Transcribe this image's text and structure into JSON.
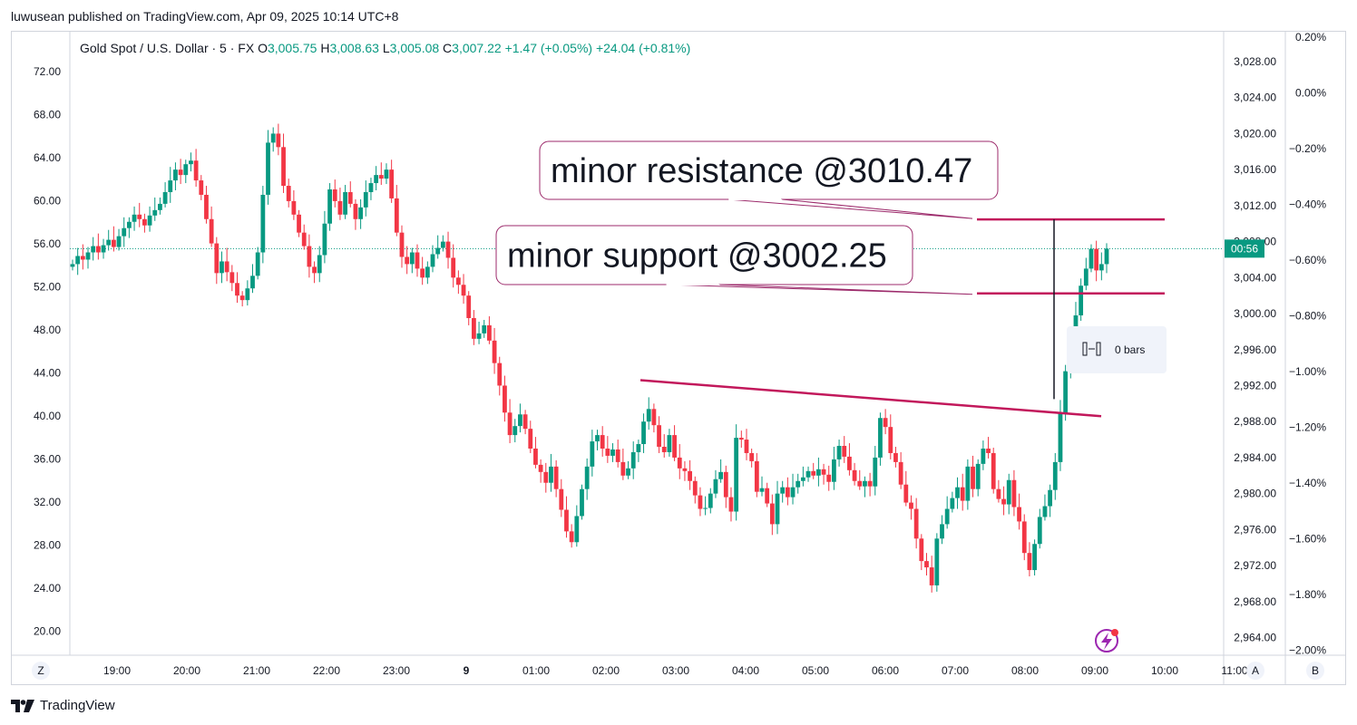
{
  "header": {
    "published": "luwusean published on TradingView.com, Apr 09, 2025 10:14 UTC+8"
  },
  "symbol": {
    "name": "Gold Spot / U.S. Dollar · 5 · FX",
    "o_label": "O",
    "o": "3,005.75",
    "h_label": "H",
    "h": "3,008.63",
    "l_label": "L",
    "l": "3,005.08",
    "c_label": "C",
    "c": "3,007.22",
    "change": "+1.47 (+0.05%)",
    "change2": "+24.04 (+0.81%)"
  },
  "footer": {
    "brand": "TradingView"
  },
  "buttons": {
    "left": "Z",
    "a": "A",
    "b": "B"
  },
  "measure": {
    "label": "0 bars"
  },
  "colors": {
    "up": "#089981",
    "down": "#f23645",
    "line": "#c2185b",
    "annotation_border": "#9c2a6b"
  },
  "chart_data": {
    "type": "candlestick",
    "symbol": "XAUUSD",
    "timeframe": "5",
    "x_ticks": [
      "19:00",
      "20:00",
      "21:00",
      "22:00",
      "23:00",
      "9",
      "01:00",
      "02:00",
      "03:00",
      "04:00",
      "05:00",
      "06:00",
      "07:00",
      "08:00",
      "09:00",
      "10:00",
      "11:00"
    ],
    "left_axis": {
      "ticks": [
        "72.00",
        "68.00",
        "64.00",
        "60.00",
        "56.00",
        "52.00",
        "48.00",
        "44.00",
        "40.00",
        "36.00",
        "32.00",
        "28.00",
        "24.00",
        "20.00"
      ]
    },
    "price_axis": {
      "ticks": [
        "3,028.00",
        "3,024.00",
        "3,020.00",
        "3,016.00",
        "3,012.00",
        "3,008.00",
        "3,004.00",
        "3,000.00",
        "2,996.00",
        "2,992.00",
        "2,988.00",
        "2,984.00",
        "2,980.00",
        "2,976.00",
        "2,972.00",
        "2,968.00",
        "2,964.00"
      ]
    },
    "percent_axis": {
      "ticks": [
        "0.20%",
        "0.00%",
        "−0.20%",
        "−0.40%",
        "−0.60%",
        "−0.80%",
        "−1.00%",
        "−1.20%",
        "−1.40%",
        "−1.60%",
        "−1.80%",
        "−2.00%"
      ]
    },
    "current_label": "00:56",
    "close_series": [
      3005.5,
      3006.4,
      3006.0,
      3006.8,
      3007.5,
      3006.8,
      3007.6,
      3008.2,
      3007.4,
      3008.6,
      3009.5,
      3010.2,
      3011.0,
      3010.5,
      3009.8,
      3010.9,
      3011.5,
      3012.2,
      3013.5,
      3014.8,
      3016.0,
      3015.4,
      3016.6,
      3017.0,
      3014.8,
      3013.2,
      3010.5,
      3007.8,
      3004.5,
      3005.8,
      3004.6,
      3003.4,
      3002.0,
      3001.5,
      3002.8,
      3004.2,
      3006.8,
      3013.2,
      3019.0,
      3020.0,
      3018.5,
      3014.2,
      3012.5,
      3011.0,
      3009.0,
      3007.5,
      3005.2,
      3004.5,
      3006.5,
      3010.0,
      3013.8,
      3012.5,
      3011.0,
      3013.5,
      3012.2,
      3010.5,
      3011.8,
      3013.5,
      3014.5,
      3015.4,
      3015.0,
      3016.0,
      3012.8,
      3009.0,
      3006.3,
      3005.5,
      3006.8,
      3005.0,
      3004.0,
      3005.2,
      3006.6,
      3007.3,
      3008.0,
      3006.2,
      3004.0,
      3003.2,
      3002.0,
      2999.5,
      2997.2,
      2997.8,
      2998.7,
      2997.0,
      2994.5,
      2992.0,
      2989.0,
      2986.5,
      2987.5,
      2988.8,
      2987.2,
      2985.0,
      2983.2,
      2982.4,
      2981.2,
      2983.0,
      2980.5,
      2978.2,
      2975.8,
      2974.6,
      2977.5,
      2980.5,
      2983.0,
      2985.8,
      2986.5,
      2985.0,
      2984.2,
      2984.9,
      2983.5,
      2982.0,
      2982.8,
      2984.6,
      2985.5,
      2988.0,
      2989.4,
      2987.6,
      2985.2,
      2984.6,
      2986.5,
      2984.0,
      2982.8,
      2982.5,
      2981.4,
      2979.8,
      2978.3,
      2978.4,
      2980.0,
      2981.6,
      2982.4,
      2979.6,
      2978.0,
      2986.2,
      2986.0,
      2984.5,
      2983.6,
      2980.2,
      2980.6,
      2978.9,
      2976.6,
      2980.0,
      2980.7,
      2979.6,
      2980.7,
      2981.4,
      2981.8,
      2982.5,
      2982.0,
      2982.7,
      2982.1,
      2981.3,
      2983.8,
      2985.3,
      2984.1,
      2982.6,
      2981.4,
      2980.8,
      2981.4,
      2980.8,
      2984.0,
      2988.4,
      2987.4,
      2984.5,
      2983.5,
      2981.0,
      2979.0,
      2978.3,
      2975.0,
      2972.5,
      2971.8,
      2969.8,
      2975.0,
      2976.6,
      2978.3,
      2979.5,
      2980.7,
      2979.2,
      2983.0,
      2980.5,
      2983.3,
      2985.0,
      2984.5,
      2980.5,
      2979.4,
      2978.8,
      2981.5,
      2978.5,
      2976.9,
      2973.4,
      2971.5,
      2974.4,
      2977.4,
      2978.6,
      2980.4,
      2983.5,
      2989.0,
      2993.6,
      2997.0,
      2999.8,
      3003.1,
      3005.0,
      3007.2,
      3004.8,
      3005.5,
      3007.22
    ],
    "annotations": [
      {
        "text": "minor resistance @3010.47",
        "price": 3010.47
      },
      {
        "text": "minor support @3002.25",
        "price": 3002.25
      }
    ],
    "trendline": {
      "start_price": 2992.6,
      "end_price": 2988.6
    }
  }
}
